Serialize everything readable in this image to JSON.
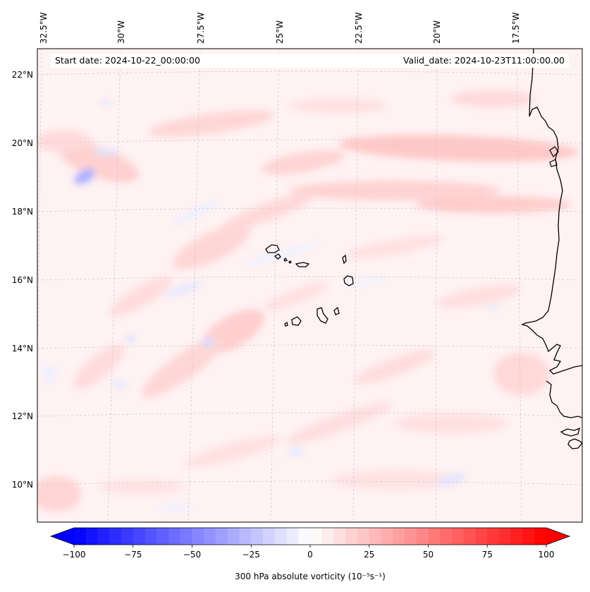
{
  "annotations": {
    "start_date": "Start date: 2024-10-22_00:00:00",
    "valid_date": "Valid_date: 2024-10-23T11:00:00.00"
  },
  "lon_labels": [
    "32.5°W",
    "30°W",
    "27.5°W",
    "25°W",
    "22.5°W",
    "20°W",
    "17.5°W"
  ],
  "lat_labels": [
    "22°N",
    "20°N",
    "18°N",
    "16°N",
    "14°N",
    "12°N",
    "10°N"
  ],
  "colorbar": {
    "label": "300 hPa absolute vorticity (10⁻⁵s⁻¹)",
    "ticks": [
      "−100",
      "−75",
      "−50",
      "−25",
      "0",
      "25",
      "50",
      "75",
      "100"
    ],
    "min": -100,
    "max": 100,
    "step": 5,
    "extend": "both",
    "cmap": "bwr",
    "colors": {
      "negative": "#0000ff",
      "zero": "#ffffff",
      "positive": "#ff0000"
    }
  },
  "map": {
    "field": "300 hPa absolute vorticity",
    "projection": "Lambert conformal",
    "background_color": "#fff0f0",
    "coastline_color": "#000000",
    "gridline_color": "#c8c8c8"
  }
}
